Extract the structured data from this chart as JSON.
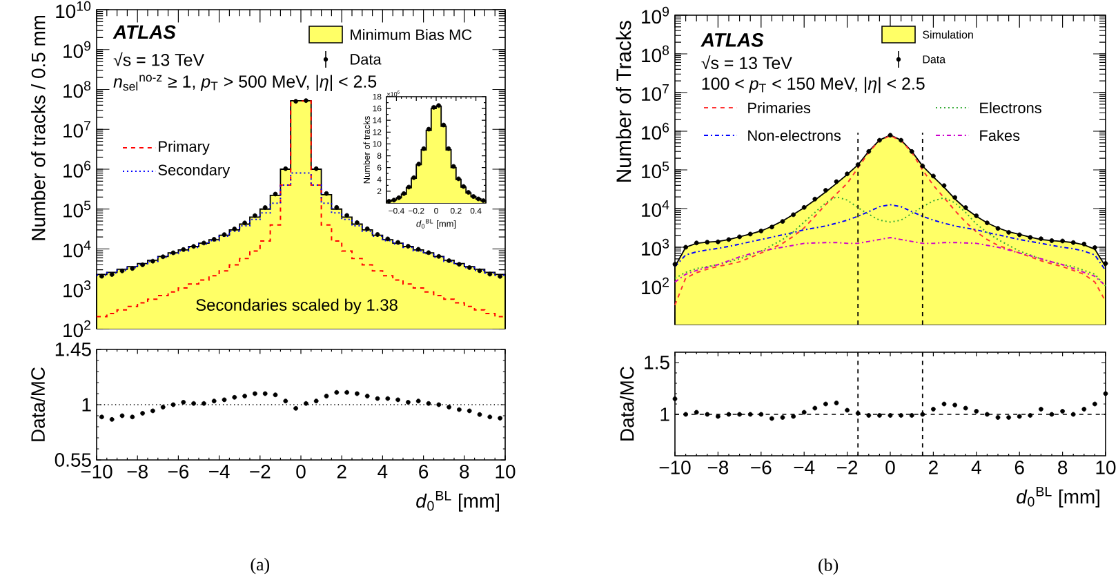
{
  "chart_data": [
    {
      "type": "histogram",
      "bins": [
        -10,
        -9.5,
        -9,
        -8.5,
        -8,
        -7.5,
        -7,
        -6.5,
        -6,
        -5.5,
        -5,
        -4.5,
        -4,
        -3.5,
        -3,
        -2.5,
        -2,
        -1.5,
        -1,
        -0.5,
        0,
        0.5,
        1,
        1.5,
        2,
        2.5,
        3,
        3.5,
        4,
        4.5,
        5,
        5.5,
        6,
        6.5,
        7,
        7.5,
        8,
        8.5,
        9,
        9.5,
        10
      ],
      "ylabel": "Number of tracks / 0.5 mm",
      "log": "y",
      "tick_labels": "y",
      "legend": "top right",
      "xlim": [
        -10,
        10
      ],
      "ylim": [
        100,
        10000000000
      ],
      "xticks": [
        {
          "value": -10,
          "label": null
        },
        {
          "value": -8,
          "label": null
        },
        {
          "value": -6,
          "label": null
        },
        {
          "value": -4,
          "label": null
        },
        {
          "value": -2,
          "label": null
        },
        {
          "value": 0,
          "label": null
        },
        {
          "value": 2,
          "label": null
        },
        {
          "value": 4,
          "label": null
        },
        {
          "value": 6,
          "label": null
        },
        {
          "value": 8,
          "label": null
        },
        {
          "value": 10,
          "label": null
        }
      ],
      "yticks": [
        {
          "value": 100,
          "label": "10$^{2}$"
        },
        {
          "value": 1000,
          "label": "10$^{3}$"
        },
        {
          "value": 10000,
          "label": "10$^{4}$"
        },
        {
          "value": 100000,
          "label": "10$^{5}$"
        },
        {
          "value": 1000000,
          "label": "10$^{6}$"
        },
        {
          "value": 10000000,
          "label": "10$^{7}$"
        },
        {
          "value": 100000000,
          "label": "10$^{8}$"
        },
        {
          "value": 1000000000,
          "label": "10$^{9}$"
        },
        {
          "value": 10000000000,
          "label": "10$^{10}$"
        }
      ],
      "annotations": [
        "ATLAS",
        "√s = 13 TeV",
        "*n*$_{sel}$$^{no-z}$ ≥ 1, *p*$_{T}$ > 500 MeV, |*η*| < 2.5",
        "Secondaries scaled by 1.38"
      ],
      "series": [
        {
          "name": "Minimum Bias MC",
          "color": "#ffff66",
          "values": [
            2300,
            2600,
            3100,
            3600,
            4300,
            5200,
            6500,
            8000,
            9500,
            11500,
            14000,
            17000,
            22000,
            30000,
            42000,
            63000,
            100000,
            220000,
            1000000,
            52000000,
            52000000,
            1000000,
            230000,
            100000,
            63000,
            42000,
            30000,
            22000,
            17000,
            14000,
            11500,
            9500,
            8000,
            6500,
            5200,
            4300,
            3600,
            3100,
            2600,
            2300
          ]
        },
        {
          "name": "Data",
          "type": "scatter",
          "marker": "circle",
          "color": "#000000",
          "x": [
            -9.75,
            -9.25,
            -8.75,
            -8.25,
            -7.75,
            -7.25,
            -6.75,
            -6.25,
            -5.75,
            -5.25,
            -4.75,
            -4.25,
            -3.75,
            -3.25,
            -2.75,
            -2.25,
            -1.75,
            -1.25,
            -0.75,
            -0.25,
            0.25,
            0.75,
            1.25,
            1.75,
            2.25,
            2.75,
            3.25,
            3.75,
            4.25,
            4.75,
            5.25,
            5.75,
            6.25,
            6.75,
            7.25,
            7.75,
            8.25,
            8.75,
            9.25,
            9.75
          ],
          "values": [
            2070,
            2290,
            2820,
            3240,
            4000,
            4940,
            6370,
            8000,
            9690,
            11600,
            14100,
            17500,
            22900,
            31800,
            44900,
            68700,
            109000,
            238000,
            1030000,
            50400000,
            52500000,
            1030000,
            246000,
            110000,
            69300,
            45800,
            32100,
            23100,
            17900,
            14600,
            11700,
            9790,
            8080,
            6500,
            5100,
            4130,
            3420,
            2850,
            2340,
            2050
          ]
        },
        {
          "name": "Primary",
          "line_style": "dashed",
          "color": "#ff0000",
          "values": [
            200,
            240,
            295,
            363,
            447,
            550,
            676,
            832,
            1050,
            1320,
            1660,
            2140,
            2820,
            3980,
            5750,
            8910,
            15800,
            39800,
            398000,
            51300000,
            51300000,
            398000,
            39800,
            15800,
            8910,
            5750,
            3980,
            2820,
            2140,
            1660,
            1320,
            1050,
            832,
            676,
            550,
            447,
            363,
            295,
            240,
            200
          ]
        },
        {
          "name": "Secondary",
          "line_style": "dotted",
          "color": "#0000ff",
          "values": [
            2200,
            2500,
            2900,
            3400,
            4100,
            4900,
            6200,
            7600,
            9000,
            10900,
            13300,
            16100,
            20800,
            28000,
            38000,
            55000,
            80000,
            140000,
            400000,
            800000,
            800000,
            400000,
            140000,
            80000,
            55000,
            38000,
            28000,
            20800,
            16100,
            13300,
            10900,
            9000,
            7600,
            6200,
            4900,
            4100,
            3400,
            2900,
            2500,
            2200
          ]
        }
      ]
    },
    {
      "type": "histogram",
      "bins": [
        -0.5,
        -0.45,
        -0.4,
        -0.35,
        -0.3,
        -0.25,
        -0.2,
        -0.15,
        -0.1,
        -0.05,
        0,
        0.05,
        0.1,
        0.15,
        0.2,
        0.25,
        0.3,
        0.35,
        0.4,
        0.45,
        0.5
      ],
      "xlabel": "*d*$_{0}$$^{BL}$ [mm]",
      "ylabel": "Number of tracks",
      "xlim": [
        -0.5,
        0.5
      ],
      "ylim": [
        0,
        18
      ],
      "xticks": [
        {
          "value": -0.4,
          "label": "−0.4"
        },
        {
          "value": -0.2,
          "label": "−0.2"
        },
        0,
        0.2,
        0.4
      ],
      "yticks": [
        2,
        4,
        6,
        8,
        10,
        12,
        14,
        16,
        18
      ],
      "annotations": [
        "×10$^{6}$"
      ],
      "series": [
        {
          "color": "#ffff66",
          "values": [
            0.3,
            0.5,
            0.9,
            1.5,
            2.6,
            4.2,
            6.5,
            9.0,
            12.3,
            16.0,
            16.4,
            13.0,
            9.0,
            6.0,
            4.0,
            2.7,
            1.7,
            1.1,
            0.7,
            0.4
          ]
        },
        {
          "type": "scatter",
          "marker": "circle",
          "color": "#000000",
          "x": [
            -0.475,
            -0.425,
            -0.375,
            -0.325,
            -0.275,
            -0.225,
            -0.175,
            -0.125,
            -0.075,
            -0.025,
            0.025,
            0.075,
            0.125,
            0.175,
            0.225,
            0.275,
            0.325,
            0.375,
            0.425,
            0.475
          ],
          "values": [
            0.3,
            0.5,
            0.9,
            1.6,
            2.7,
            4.3,
            6.6,
            9.2,
            12.5,
            16.2,
            16.5,
            13.2,
            9.2,
            6.2,
            4.1,
            2.8,
            1.8,
            1.1,
            0.7,
            0.4
          ]
        }
      ]
    },
    {
      "type": "scatter",
      "marker": "circle",
      "color": "#000000",
      "xlabel": "*d*$_{0}$$^{BL}$ [mm]",
      "ylabel": "Data/MC",
      "xlim": [
        -10,
        10
      ],
      "ylim": [
        0.55,
        1.45
      ],
      "xticks": [
        {
          "value": -10,
          "label": "−10"
        },
        {
          "value": -8,
          "label": "−8"
        },
        {
          "value": -6,
          "label": "−6"
        },
        {
          "value": -4,
          "label": "−4"
        },
        {
          "value": -2,
          "label": "−2"
        },
        0,
        2,
        4,
        6,
        8,
        10
      ],
      "yticks": [
        0.55,
        1,
        1.45
      ],
      "ref_lines": [
        {
          "axis": "y",
          "value": 1,
          "line_style": "dotted"
        }
      ],
      "annotations": [
        "(a)"
      ],
      "x": [
        -9.75,
        -9.25,
        -8.75,
        -8.25,
        -7.75,
        -7.25,
        -6.75,
        -6.25,
        -5.75,
        -5.25,
        -4.75,
        -4.25,
        -3.75,
        -3.25,
        -2.75,
        -2.25,
        -1.75,
        -1.25,
        -0.75,
        -0.25,
        0.25,
        0.75,
        1.25,
        1.75,
        2.25,
        2.75,
        3.25,
        3.75,
        4.25,
        4.75,
        5.25,
        5.75,
        6.25,
        6.75,
        7.25,
        7.75,
        8.25,
        8.75,
        9.25,
        9.75
      ],
      "values": [
        0.9,
        0.88,
        0.91,
        0.9,
        0.93,
        0.95,
        0.98,
        1.0,
        1.02,
        1.01,
        1.01,
        1.03,
        1.04,
        1.06,
        1.07,
        1.09,
        1.09,
        1.08,
        1.03,
        0.97,
        1.01,
        1.03,
        1.07,
        1.1,
        1.1,
        1.09,
        1.07,
        1.05,
        1.05,
        1.04,
        1.02,
        1.03,
        1.01,
        1.0,
        0.98,
        0.96,
        0.95,
        0.92,
        0.9,
        0.89
      ]
    },
    {
      "type": "line",
      "ylabel": "Number of Tracks",
      "log": "y",
      "tick_labels": "y",
      "legend": "top right",
      "xlim": [
        -10,
        10
      ],
      "ylim": [
        10,
        1000000000
      ],
      "xticks": [
        {
          "value": -10,
          "label": null
        },
        {
          "value": -8,
          "label": null
        },
        {
          "value": -6,
          "label": null
        },
        {
          "value": -4,
          "label": null
        },
        {
          "value": -2,
          "label": null
        },
        {
          "value": 0,
          "label": null
        },
        {
          "value": 2,
          "label": null
        },
        {
          "value": 4,
          "label": null
        },
        {
          "value": 6,
          "label": null
        },
        {
          "value": 8,
          "label": null
        },
        {
          "value": 10,
          "label": null
        }
      ],
      "yticks": [
        {
          "value": 100,
          "label": "10$^{2}$"
        },
        {
          "value": 1000,
          "label": "10$^{3}$"
        },
        {
          "value": 10000,
          "label": "10$^{4}$"
        },
        {
          "value": 100000,
          "label": "10$^{5}$"
        },
        {
          "value": 1000000,
          "label": "10$^{6}$"
        },
        {
          "value": 10000000,
          "label": "10$^{7}$"
        },
        {
          "value": 100000000,
          "label": "10$^{8}$"
        },
        {
          "value": 1000000000,
          "label": "10$^{9}$"
        }
      ],
      "ref_lines": [
        {
          "axis": "x",
          "value": -1.5,
          "line_style": "dashed"
        },
        {
          "axis": "x",
          "value": 1.5,
          "line_style": "dashed"
        }
      ],
      "annotations": [
        "ATLAS",
        "√s = 13 TeV",
        "100 < *p*$_{T}$ < 150 MeV, |*η*| < 2.5"
      ],
      "x": [
        -10,
        -9.5,
        -9,
        -8.5,
        -8,
        -7.5,
        -7,
        -6.5,
        -6,
        -5.5,
        -5,
        -4.5,
        -4,
        -3.5,
        -3,
        -2.5,
        -2,
        -1.5,
        -1,
        -0.5,
        0,
        0.5,
        1,
        1.5,
        2,
        2.5,
        3,
        3.5,
        4,
        4.5,
        5,
        5.5,
        6,
        6.5,
        7,
        7.5,
        8,
        8.5,
        9,
        9.5,
        10
      ],
      "series": [
        {
          "name": "Simulation",
          "type": "area",
          "color": "#ffff66",
          "values": [
            316,
            1000,
            1260,
            1350,
            1410,
            1580,
            1860,
            2190,
            2630,
            3470,
            4790,
            7080,
            10500,
            16600,
            26900,
            44700,
            75900,
            135000,
            302000,
            589000,
            794000,
            589000,
            302000,
            126000,
            66100,
            35500,
            17800,
            10000,
            6310,
            4270,
            3160,
            2510,
            2140,
            1820,
            1580,
            1480,
            1410,
            1320,
            1150,
            891,
            316
          ]
        },
        {
          "name": "Data",
          "type": "scatter",
          "marker": "circle",
          "color": "#000000",
          "values": [
            363,
            1000,
            1290,
            1350,
            1380,
            1580,
            1860,
            2190,
            2630,
            3330,
            4650,
            6940,
            10700,
            17600,
            29600,
            49600,
            78900,
            136000,
            299000,
            583000,
            786000,
            583000,
            299000,
            126000,
            69400,
            39100,
            19400,
            10600,
            6500,
            4270,
            3070,
            2430,
            2100,
            1800,
            1660,
            1480,
            1450,
            1320,
            1210,
            980,
            379
          ]
        },
        {
          "name": "Primaries",
          "line_style": "dashed",
          "color": "#ff3333",
          "values": [
            32,
            160,
            220,
            270,
            320,
            360,
            420,
            540,
            710,
            930,
            1260,
            1910,
            3160,
            6310,
            12600,
            24000,
            44700,
            112000,
            282000,
            575000,
            759000,
            575000,
            282000,
            100000,
            39800,
            19100,
            8910,
            4470,
            2510,
            1580,
            1120,
            891,
            708,
            562,
            447,
            372,
            316,
            251,
            200,
            126,
            40
          ]
        },
        {
          "name": "Non-electrons",
          "line_style": "dashdot",
          "color": "#0000ff",
          "values": [
            316,
            631,
            759,
            851,
            933,
            1050,
            1200,
            1380,
            1580,
            1820,
            2090,
            2400,
            2820,
            3160,
            3550,
            4170,
            5010,
            6310,
            8320,
            11200,
            12600,
            11200,
            8320,
            6310,
            5010,
            4170,
            3550,
            3160,
            2820,
            2400,
            2090,
            1820,
            1580,
            1410,
            1260,
            1120,
            1000,
            912,
            794,
            631,
            251
          ]
        },
        {
          "name": "Electrons",
          "line_style": "dotted",
          "color": "#33aa33",
          "values": [
            158,
            224,
            282,
            316,
            355,
            417,
            501,
            631,
            794,
            1120,
            1580,
            2510,
            4470,
            7940,
            14100,
            20000,
            16600,
            10500,
            7080,
            5010,
            4470,
            5010,
            7410,
            11200,
            15800,
            19100,
            14100,
            7940,
            3980,
            2400,
            1580,
            1120,
            794,
            631,
            501,
            417,
            355,
            316,
            251,
            200,
            100
          ]
        },
        {
          "name": "Fakes",
          "line_style": "dashdot",
          "color": "#cc00cc",
          "values": [
            126,
            200,
            251,
            302,
            355,
            447,
            562,
            676,
            794,
            891,
            1000,
            1120,
            1260,
            1290,
            1320,
            1320,
            1260,
            1260,
            1410,
            1580,
            1780,
            1580,
            1410,
            1260,
            1260,
            1320,
            1320,
            1290,
            1260,
            1120,
            1000,
            851,
            708,
            603,
            501,
            417,
            355,
            282,
            224,
            178,
            100
          ]
        }
      ]
    },
    {
      "type": "scatter",
      "marker": "circle",
      "color": "#000000",
      "xlabel": "*d*$_{0}$$^{BL}$ [mm]",
      "ylabel": "Data/MC",
      "xlim": [
        -10,
        10
      ],
      "ylim": [
        0.6,
        1.6
      ],
      "xticks": [
        {
          "value": -10,
          "label": "−10"
        },
        {
          "value": -8,
          "label": "−8"
        },
        {
          "value": -6,
          "label": "−6"
        },
        {
          "value": -4,
          "label": "−4"
        },
        {
          "value": -2,
          "label": "−2"
        },
        0,
        2,
        4,
        6,
        8,
        10
      ],
      "yticks": [
        1,
        1.5
      ],
      "ref_lines": [
        {
          "axis": "y",
          "value": 1,
          "line_style": "dashed"
        },
        {
          "axis": "x",
          "value": -1.5,
          "line_style": "dashed"
        },
        {
          "axis": "x",
          "value": 1.5,
          "line_style": "dashed"
        }
      ],
      "annotations": [
        "(b)"
      ],
      "x": [
        -10,
        -9.5,
        -9,
        -8.5,
        -8,
        -7.5,
        -7,
        -6.5,
        -6,
        -5.5,
        -5,
        -4.5,
        -4,
        -3.5,
        -3,
        -2.5,
        -2,
        -1.5,
        -1,
        -0.5,
        0,
        0.5,
        1,
        1.5,
        2,
        2.5,
        3,
        3.5,
        4,
        4.5,
        5,
        5.5,
        6,
        6.5,
        7,
        7.5,
        8,
        8.5,
        9,
        9.5,
        10
      ],
      "values": [
        1.15,
        1.0,
        1.02,
        1.0,
        0.98,
        1.0,
        1.0,
        1.0,
        1.0,
        0.96,
        0.97,
        0.98,
        1.02,
        1.06,
        1.1,
        1.11,
        1.04,
        1.01,
        0.99,
        0.99,
        0.99,
        0.99,
        0.99,
        1.0,
        1.05,
        1.1,
        1.09,
        1.06,
        1.03,
        1.0,
        0.97,
        0.97,
        0.98,
        0.99,
        1.05,
        1.0,
        1.03,
        1.0,
        1.05,
        1.1,
        1.2
      ]
    }
  ]
}
